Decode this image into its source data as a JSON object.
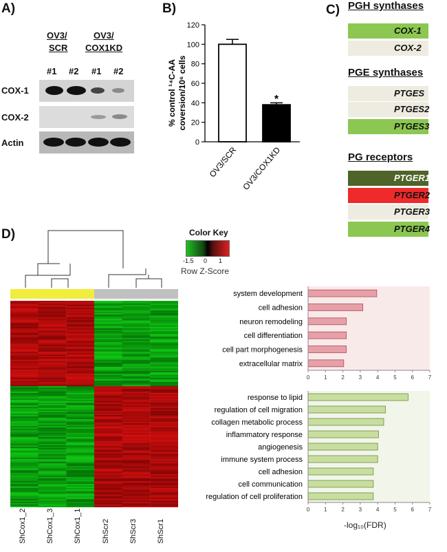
{
  "panel_labels": {
    "a": "A)",
    "b": "B)",
    "c": "C)",
    "d": "D)"
  },
  "panel_a": {
    "groups": [
      {
        "line1": "OV3/",
        "line2": "SCR"
      },
      {
        "line1": "OV3/",
        "line2": "COX1KD"
      }
    ],
    "lanes": [
      "#1",
      "#2",
      "#1",
      "#2"
    ],
    "rows": [
      "COX-1",
      "COX-2",
      "Actin"
    ]
  },
  "panel_b": {
    "chart_data": {
      "type": "bar",
      "categories": [
        "OV3/SCR",
        "OV3/COX1KD"
      ],
      "values": [
        100,
        38
      ],
      "errors": [
        5,
        2
      ],
      "colors": [
        "#ffffff",
        "#000000"
      ],
      "ylabel_line1": "% control ¹⁴C-AA",
      "ylabel_line2": "coversion/10⁶ cells",
      "ylim": [
        0,
        120
      ],
      "yticks": [
        0,
        20,
        40,
        60,
        80,
        100,
        120
      ],
      "annotation": "*"
    }
  },
  "panel_c": {
    "sections": [
      {
        "title": "PGH synthases",
        "genes": [
          {
            "name": "COX-1",
            "color": "#8cc751"
          },
          {
            "name": "COX-2",
            "color": "#eeece1"
          }
        ]
      },
      {
        "title": "PGE synthases",
        "genes": [
          {
            "name": "PTGES",
            "color": "#eeece1"
          },
          {
            "name": "PTGES2",
            "color": "#eeece1"
          },
          {
            "name": "PTGES3",
            "color": "#8cc751"
          }
        ]
      },
      {
        "title": "PG receptors",
        "genes": [
          {
            "name": "PTGER1",
            "color": "#4e6428"
          },
          {
            "name": "PTGER2",
            "color": "#ee2a2a"
          },
          {
            "name": "PTGER3",
            "color": "#eeece1"
          },
          {
            "name": "PTGER4",
            "color": "#8cc751"
          }
        ]
      }
    ]
  },
  "panel_d": {
    "color_key": {
      "title": "Color Key",
      "ticks": [
        "-1.5",
        "0",
        "1"
      ],
      "label": "Row Z-Score"
    },
    "samples": [
      "ShCox1_2",
      "ShCox1_3",
      "ShCox1_1",
      "ShScr2",
      "ShScr3",
      "ShScr1"
    ],
    "go_charts": [
      {
        "type": "bar",
        "orientation": "horizontal",
        "bar_color": "#e6a0a8",
        "bar_border": "#b04a55",
        "background": "#f9eaea",
        "categories": [
          "system development",
          "cell adhesion",
          "neuron remodeling",
          "cell differentiation",
          "cell part morphogenesis",
          "extracellular matrix"
        ],
        "values": [
          3.95,
          3.15,
          2.2,
          2.2,
          2.2,
          2.05
        ],
        "xlim": [
          0,
          7
        ],
        "xticks": [
          0,
          1,
          2,
          3,
          4,
          5,
          6,
          7
        ]
      },
      {
        "type": "bar",
        "orientation": "horizontal",
        "bar_color": "#c8dea0",
        "bar_border": "#6c8c3a",
        "background": "#f1f5ea",
        "categories": [
          "response to lipid",
          "regulation of cell migration",
          "collagen metabolic process",
          "inflammatory response",
          "angiogenesis",
          "immune system process",
          "cell adhesion",
          "cell communication",
          "regulation of cell proliferation"
        ],
        "values": [
          5.75,
          4.45,
          4.35,
          4.05,
          4.0,
          4.0,
          3.75,
          3.75,
          3.75
        ],
        "xlim": [
          0,
          7
        ],
        "xticks": [
          0,
          1,
          2,
          3,
          4,
          5,
          6,
          7
        ],
        "xlabel": "-log₁₀(FDR)"
      }
    ]
  }
}
